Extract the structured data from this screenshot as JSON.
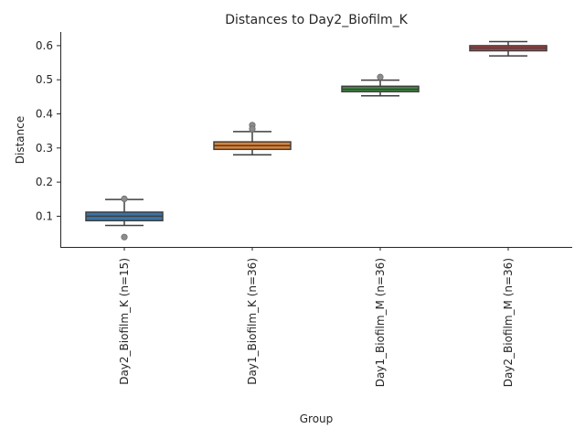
{
  "chart_data": {
    "type": "box",
    "title": "Distances to Day2_Biofilm_K",
    "xlabel": "Group",
    "ylabel": "Distance",
    "ylim": [
      0.01,
      0.64
    ],
    "yticks": [
      0.1,
      0.2,
      0.3,
      0.4,
      0.5,
      0.6
    ],
    "categories": [
      "Day2_Biofilm_K (n=15)",
      "Day1_Biofilm_K (n=36)",
      "Day1_Biofilm_M (n=36)",
      "Day2_Biofilm_M (n=36)"
    ],
    "boxes": [
      {
        "whisker_low": 0.073,
        "q1": 0.087,
        "median": 0.1,
        "q3": 0.112,
        "whisker_high": 0.149,
        "outliers": [
          0.151,
          0.039
        ],
        "color": "#3a74a8"
      },
      {
        "whisker_low": 0.28,
        "q1": 0.296,
        "median": 0.307,
        "q3": 0.318,
        "whisker_high": 0.348,
        "outliers": [
          0.367,
          0.356
        ],
        "color": "#e1812c"
      },
      {
        "whisker_low": 0.453,
        "q1": 0.465,
        "median": 0.472,
        "q3": 0.481,
        "whisker_high": 0.499,
        "outliers": [
          0.508
        ],
        "color": "#3a923a"
      },
      {
        "whisker_low": 0.57,
        "q1": 0.585,
        "median": 0.593,
        "q3": 0.6,
        "whisker_high": 0.612,
        "outliers": [],
        "color": "#c03d3e"
      }
    ],
    "grid": false,
    "spines": [
      "left",
      "bottom"
    ]
  }
}
